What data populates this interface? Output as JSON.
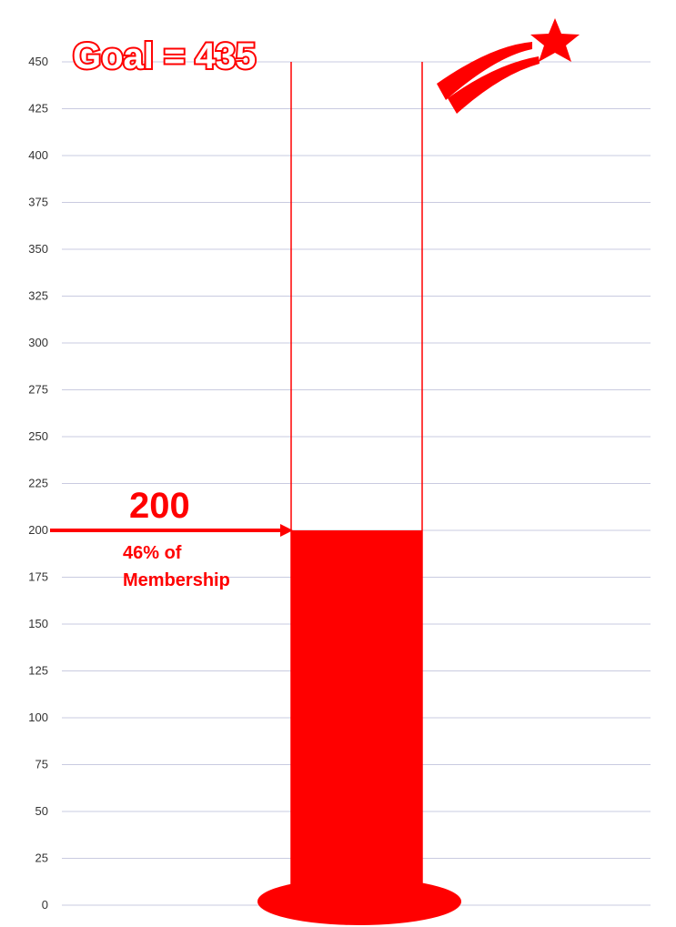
{
  "chart_data": {
    "type": "bar",
    "style": "thermometer",
    "categories": [
      ""
    ],
    "values": [
      200
    ],
    "ylim": [
      0,
      450
    ],
    "yticks": [
      "0",
      "25",
      "50",
      "75",
      "100",
      "125",
      "150",
      "175",
      "200",
      "225",
      "250",
      "275",
      "300",
      "325",
      "350",
      "375",
      "400",
      "425",
      "450"
    ],
    "grid": true,
    "title": "",
    "xlabel": "",
    "ylabel": "",
    "annotations": {
      "goal_text": "Goal = 435",
      "value_text": "200",
      "percent_line1": "46% of",
      "percent_line2": "Membership"
    }
  },
  "colors": {
    "accent": "#ff0000",
    "grid": "#c9cbe0",
    "text": "#333333"
  },
  "icons": {
    "decoration": "shooting-star-icon"
  }
}
